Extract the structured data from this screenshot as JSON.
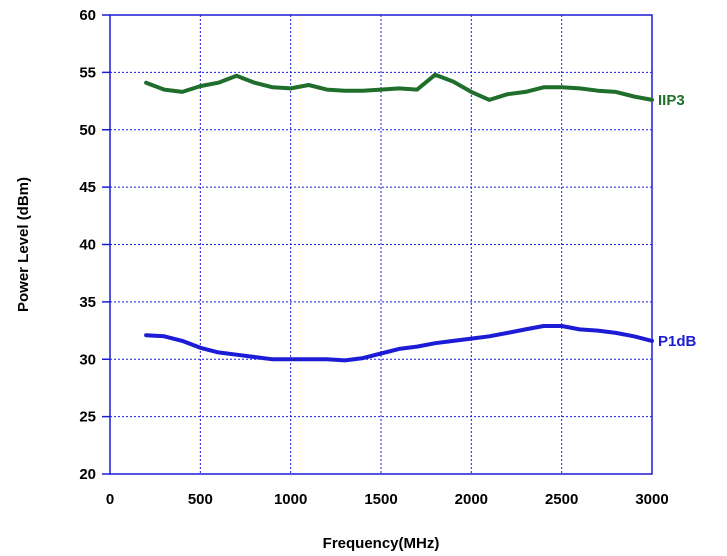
{
  "chart_data": {
    "type": "line",
    "title": "",
    "xlabel": "Frequency(MHz)",
    "ylabel": "Power Level (dBm)",
    "xlim": [
      0,
      3000
    ],
    "ylim": [
      20,
      60
    ],
    "x_ticks": [
      "0",
      "500",
      "1000",
      "1500",
      "2000",
      "2500",
      "3000"
    ],
    "y_ticks": [
      "20",
      "25",
      "30",
      "35",
      "40",
      "45",
      "50",
      "55",
      "60"
    ],
    "grid": true,
    "series": [
      {
        "name": "IIP3",
        "color": "#1f6e2b",
        "x": [
          200,
          300,
          400,
          500,
          600,
          700,
          800,
          900,
          1000,
          1100,
          1200,
          1300,
          1400,
          1500,
          1600,
          1700,
          1800,
          1900,
          2000,
          2100,
          2200,
          2300,
          2400,
          2500,
          2600,
          2700,
          2800,
          2900,
          3000
        ],
        "y": [
          54.1,
          53.5,
          53.3,
          53.8,
          54.1,
          54.7,
          54.1,
          53.7,
          53.6,
          53.9,
          53.5,
          53.4,
          53.4,
          53.5,
          53.6,
          53.5,
          54.8,
          54.2,
          53.3,
          52.6,
          53.1,
          53.3,
          53.7,
          53.7,
          53.6,
          53.4,
          53.3,
          52.9,
          52.6
        ]
      },
      {
        "name": "P1dB",
        "color": "#1c1cd6",
        "x": [
          200,
          300,
          400,
          500,
          600,
          700,
          800,
          900,
          1000,
          1100,
          1200,
          1300,
          1400,
          1500,
          1600,
          1700,
          1800,
          1900,
          2000,
          2100,
          2200,
          2300,
          2400,
          2500,
          2600,
          2700,
          2800,
          2900,
          3000
        ],
        "y": [
          32.1,
          32.0,
          31.6,
          31.0,
          30.6,
          30.4,
          30.2,
          30.0,
          30.0,
          30.0,
          30.0,
          29.9,
          30.1,
          30.5,
          30.9,
          31.1,
          31.4,
          31.6,
          31.8,
          32.0,
          32.3,
          32.6,
          32.9,
          32.9,
          32.6,
          32.5,
          32.3,
          32.0,
          31.6
        ]
      }
    ]
  }
}
